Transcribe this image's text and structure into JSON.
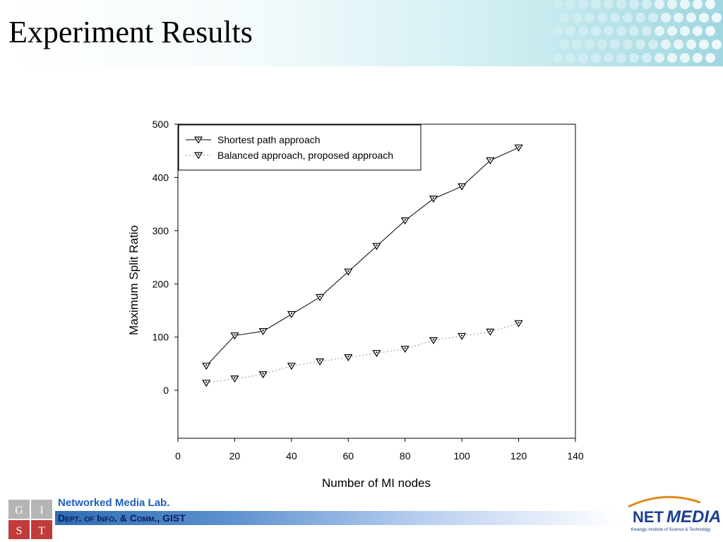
{
  "slide": {
    "title": "Experiment Results"
  },
  "footer": {
    "lab_name": "Networked Media Lab",
    "lab_name_dot": ".",
    "dept": "Dept. of Info. & Comm., GIST",
    "gist_letters": [
      "G",
      "I",
      "S",
      "T"
    ],
    "netmedia_logo": {
      "word1": "NET",
      "word2": "MEDIA",
      "tagline": "Kwangju Institute of Science & Technology"
    }
  },
  "colors": {
    "title": "#000000",
    "lab_name": "#1f5fbf",
    "dept": "#0b1f5c",
    "gist_logo": "#b03030",
    "netmedia_blue": "#1b3f8f",
    "netmedia_orange": "#e08a1e"
  },
  "chart_data": {
    "type": "line",
    "xlabel": "Number of MI nodes",
    "ylabel": "Maximum Split Ratio",
    "xlim": [
      0,
      140
    ],
    "ylim": [
      -90,
      500
    ],
    "xticks": [
      0,
      20,
      40,
      60,
      80,
      100,
      120,
      140
    ],
    "yticks": [
      0,
      100,
      200,
      300,
      400,
      500
    ],
    "grid": false,
    "legend_position": "top-left",
    "x": [
      10,
      20,
      30,
      40,
      50,
      60,
      70,
      80,
      90,
      100,
      110,
      120
    ],
    "series": [
      {
        "name": "Shortest path approach",
        "style": "solid",
        "marker": "down-triangle",
        "values": [
          46,
          103,
          111,
          143,
          175,
          223,
          271,
          319,
          360,
          383,
          432,
          456
        ]
      },
      {
        "name": "Balanced approach, proposed approach",
        "style": "dotted",
        "marker": "down-triangle",
        "values": [
          14,
          22,
          30,
          46,
          54,
          62,
          70,
          78,
          94,
          102,
          110,
          126
        ]
      }
    ]
  }
}
